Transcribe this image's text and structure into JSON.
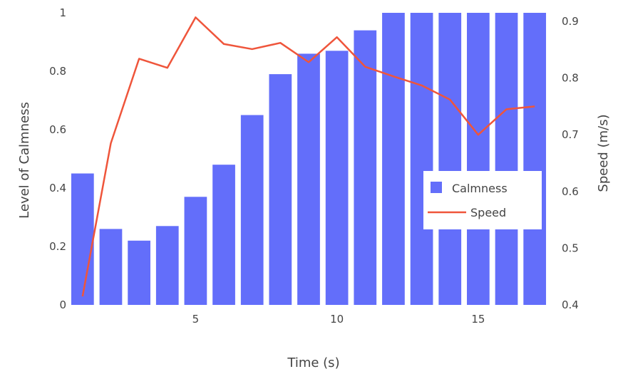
{
  "chart_data": {
    "type": "bar",
    "xlabel": "Time (s)",
    "ylabel": "Level of Calmness",
    "y2label": "Speed (m/s)",
    "xlim": [
      0.5,
      17.5
    ],
    "ylim": [
      0,
      1
    ],
    "y2lim": [
      0.4,
      0.915
    ],
    "x_ticks": [
      "5",
      "10",
      "15"
    ],
    "y_ticks": [
      "0",
      "0.2",
      "0.4",
      "0.6",
      "0.8",
      "1"
    ],
    "y2_ticks": [
      "0.4",
      "0.5",
      "0.6",
      "0.7",
      "0.8",
      "0.9"
    ],
    "x": [
      1,
      2,
      3,
      4,
      5,
      6,
      7,
      8,
      9,
      10,
      11,
      12,
      13,
      14,
      15,
      16,
      17
    ],
    "series": [
      {
        "name": "Calmness",
        "type": "bar",
        "axis": "y",
        "color": "#636efa",
        "values": [
          0.45,
          0.26,
          0.22,
          0.27,
          0.37,
          0.48,
          0.65,
          0.79,
          0.86,
          0.87,
          0.94,
          1.0,
          1.0,
          1.0,
          1.0,
          1.0,
          1.0
        ]
      },
      {
        "name": "Speed",
        "type": "line",
        "axis": "y2",
        "color": "#ef553b",
        "values": [
          0.415,
          0.685,
          0.834,
          0.818,
          0.907,
          0.86,
          0.851,
          0.862,
          0.828,
          0.872,
          0.82,
          0.803,
          0.787,
          0.762,
          0.7,
          0.745,
          0.75
        ]
      }
    ],
    "legend_position": "right"
  }
}
